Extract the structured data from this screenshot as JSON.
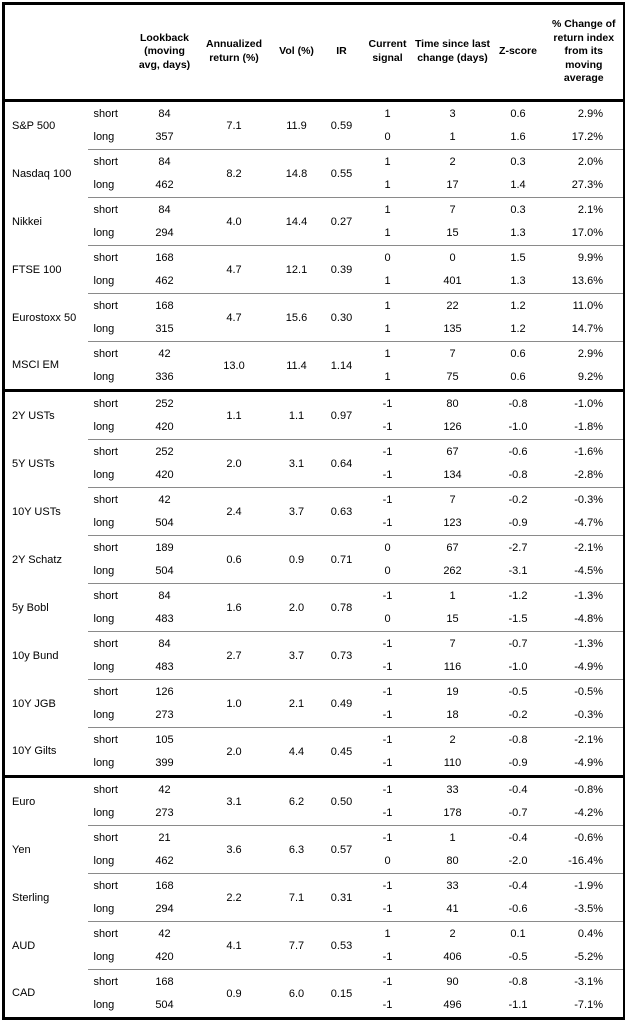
{
  "table": {
    "columns": [
      {
        "key": "asset",
        "label": ""
      },
      {
        "key": "leg",
        "label": ""
      },
      {
        "key": "lookback",
        "label": "Lookback (moving avg, days)"
      },
      {
        "key": "annualized_return",
        "label": "Annualized return (%)"
      },
      {
        "key": "vol",
        "label": "Vol (%)"
      },
      {
        "key": "ir",
        "label": "IR"
      },
      {
        "key": "signal",
        "label": "Current signal"
      },
      {
        "key": "time_since",
        "label": "Time since last change (days)"
      },
      {
        "key": "zscore",
        "label": "Z-score"
      },
      {
        "key": "pct_change",
        "label": "% Change of return index from its moving average"
      }
    ],
    "leg_labels": {
      "short": "short",
      "long": "long"
    },
    "colors": {
      "text": "#000000",
      "group_rule": "#8a8a8a",
      "block_rule": "#000000",
      "background": "#ffffff"
    },
    "groups": [
      {
        "asset": "S&P 500",
        "block": "equities",
        "annualized_return": "7.1",
        "vol": "11.9",
        "ir": "0.59",
        "short": {
          "lookback": "84",
          "signal": "1",
          "time_since": "3",
          "zscore": "0.6",
          "pct_change": "2.9%"
        },
        "long": {
          "lookback": "357",
          "signal": "0",
          "time_since": "1",
          "zscore": "1.6",
          "pct_change": "17.2%"
        }
      },
      {
        "asset": "Nasdaq 100",
        "block": "equities",
        "annualized_return": "8.2",
        "vol": "14.8",
        "ir": "0.55",
        "short": {
          "lookback": "84",
          "signal": "1",
          "time_since": "2",
          "zscore": "0.3",
          "pct_change": "2.0%"
        },
        "long": {
          "lookback": "462",
          "signal": "1",
          "time_since": "17",
          "zscore": "1.4",
          "pct_change": "27.3%"
        }
      },
      {
        "asset": "Nikkei",
        "block": "equities",
        "annualized_return": "4.0",
        "vol": "14.4",
        "ir": "0.27",
        "short": {
          "lookback": "84",
          "signal": "1",
          "time_since": "7",
          "zscore": "0.3",
          "pct_change": "2.1%"
        },
        "long": {
          "lookback": "294",
          "signal": "1",
          "time_since": "15",
          "zscore": "1.3",
          "pct_change": "17.0%"
        }
      },
      {
        "asset": "FTSE 100",
        "block": "equities",
        "annualized_return": "4.7",
        "vol": "12.1",
        "ir": "0.39",
        "short": {
          "lookback": "168",
          "signal": "0",
          "time_since": "0",
          "zscore": "1.5",
          "pct_change": "9.9%"
        },
        "long": {
          "lookback": "462",
          "signal": "1",
          "time_since": "401",
          "zscore": "1.3",
          "pct_change": "13.6%"
        }
      },
      {
        "asset": "Eurostoxx 50",
        "block": "equities",
        "annualized_return": "4.7",
        "vol": "15.6",
        "ir": "0.30",
        "short": {
          "lookback": "168",
          "signal": "1",
          "time_since": "22",
          "zscore": "1.2",
          "pct_change": "11.0%"
        },
        "long": {
          "lookback": "315",
          "signal": "1",
          "time_since": "135",
          "zscore": "1.2",
          "pct_change": "14.7%"
        }
      },
      {
        "asset": "MSCI EM",
        "block": "equities",
        "annualized_return": "13.0",
        "vol": "11.4",
        "ir": "1.14",
        "short": {
          "lookback": "42",
          "signal": "1",
          "time_since": "7",
          "zscore": "0.6",
          "pct_change": "2.9%"
        },
        "long": {
          "lookback": "336",
          "signal": "1",
          "time_since": "75",
          "zscore": "0.6",
          "pct_change": "9.2%"
        }
      },
      {
        "asset": "2Y USTs",
        "block": "rates",
        "annualized_return": "1.1",
        "vol": "1.1",
        "ir": "0.97",
        "short": {
          "lookback": "252",
          "signal": "-1",
          "time_since": "80",
          "zscore": "-0.8",
          "pct_change": "-1.0%"
        },
        "long": {
          "lookback": "420",
          "signal": "-1",
          "time_since": "126",
          "zscore": "-1.0",
          "pct_change": "-1.8%"
        }
      },
      {
        "asset": "5Y USTs",
        "block": "rates",
        "annualized_return": "2.0",
        "vol": "3.1",
        "ir": "0.64",
        "short": {
          "lookback": "252",
          "signal": "-1",
          "time_since": "67",
          "zscore": "-0.6",
          "pct_change": "-1.6%"
        },
        "long": {
          "lookback": "420",
          "signal": "-1",
          "time_since": "134",
          "zscore": "-0.8",
          "pct_change": "-2.8%"
        }
      },
      {
        "asset": "10Y USTs",
        "block": "rates",
        "annualized_return": "2.4",
        "vol": "3.7",
        "ir": "0.63",
        "short": {
          "lookback": "42",
          "signal": "-1",
          "time_since": "7",
          "zscore": "-0.2",
          "pct_change": "-0.3%"
        },
        "long": {
          "lookback": "504",
          "signal": "-1",
          "time_since": "123",
          "zscore": "-0.9",
          "pct_change": "-4.7%"
        }
      },
      {
        "asset": "2Y Schatz",
        "block": "rates",
        "annualized_return": "0.6",
        "vol": "0.9",
        "ir": "0.71",
        "short": {
          "lookback": "189",
          "signal": "0",
          "time_since": "67",
          "zscore": "-2.7",
          "pct_change": "-2.1%"
        },
        "long": {
          "lookback": "504",
          "signal": "0",
          "time_since": "262",
          "zscore": "-3.1",
          "pct_change": "-4.5%"
        }
      },
      {
        "asset": "5y Bobl",
        "block": "rates",
        "annualized_return": "1.6",
        "vol": "2.0",
        "ir": "0.78",
        "short": {
          "lookback": "84",
          "signal": "-1",
          "time_since": "1",
          "zscore": "-1.2",
          "pct_change": "-1.3%"
        },
        "long": {
          "lookback": "483",
          "signal": "0",
          "time_since": "15",
          "zscore": "-1.5",
          "pct_change": "-4.8%"
        }
      },
      {
        "asset": "10y Bund",
        "block": "rates",
        "annualized_return": "2.7",
        "vol": "3.7",
        "ir": "0.73",
        "short": {
          "lookback": "84",
          "signal": "-1",
          "time_since": "7",
          "zscore": "-0.7",
          "pct_change": "-1.3%"
        },
        "long": {
          "lookback": "483",
          "signal": "-1",
          "time_since": "116",
          "zscore": "-1.0",
          "pct_change": "-4.9%"
        }
      },
      {
        "asset": "10Y JGB",
        "block": "rates",
        "annualized_return": "1.0",
        "vol": "2.1",
        "ir": "0.49",
        "short": {
          "lookback": "126",
          "signal": "-1",
          "time_since": "19",
          "zscore": "-0.5",
          "pct_change": "-0.5%"
        },
        "long": {
          "lookback": "273",
          "signal": "-1",
          "time_since": "18",
          "zscore": "-0.2",
          "pct_change": "-0.3%"
        }
      },
      {
        "asset": "10Y Gilts",
        "block": "rates",
        "annualized_return": "2.0",
        "vol": "4.4",
        "ir": "0.45",
        "short": {
          "lookback": "105",
          "signal": "-1",
          "time_since": "2",
          "zscore": "-0.8",
          "pct_change": "-2.1%"
        },
        "long": {
          "lookback": "399",
          "signal": "-1",
          "time_since": "110",
          "zscore": "-0.9",
          "pct_change": "-4.9%"
        }
      },
      {
        "asset": "Euro",
        "block": "fx",
        "annualized_return": "3.1",
        "vol": "6.2",
        "ir": "0.50",
        "short": {
          "lookback": "42",
          "signal": "-1",
          "time_since": "33",
          "zscore": "-0.4",
          "pct_change": "-0.8%"
        },
        "long": {
          "lookback": "273",
          "signal": "-1",
          "time_since": "178",
          "zscore": "-0.7",
          "pct_change": "-4.2%"
        }
      },
      {
        "asset": "Yen",
        "block": "fx",
        "annualized_return": "3.6",
        "vol": "6.3",
        "ir": "0.57",
        "short": {
          "lookback": "21",
          "signal": "-1",
          "time_since": "1",
          "zscore": "-0.4",
          "pct_change": "-0.6%"
        },
        "long": {
          "lookback": "462",
          "signal": "0",
          "time_since": "80",
          "zscore": "-2.0",
          "pct_change": "-16.4%"
        }
      },
      {
        "asset": "Sterling",
        "block": "fx",
        "annualized_return": "2.2",
        "vol": "7.1",
        "ir": "0.31",
        "short": {
          "lookback": "168",
          "signal": "-1",
          "time_since": "33",
          "zscore": "-0.4",
          "pct_change": "-1.9%"
        },
        "long": {
          "lookback": "294",
          "signal": "-1",
          "time_since": "41",
          "zscore": "-0.6",
          "pct_change": "-3.5%"
        }
      },
      {
        "asset": "AUD",
        "block": "fx",
        "annualized_return": "4.1",
        "vol": "7.7",
        "ir": "0.53",
        "short": {
          "lookback": "42",
          "signal": "1",
          "time_since": "2",
          "zscore": "0.1",
          "pct_change": "0.4%"
        },
        "long": {
          "lookback": "420",
          "signal": "-1",
          "time_since": "406",
          "zscore": "-0.5",
          "pct_change": "-5.2%"
        }
      },
      {
        "asset": "CAD",
        "block": "fx",
        "annualized_return": "0.9",
        "vol": "6.0",
        "ir": "0.15",
        "short": {
          "lookback": "168",
          "signal": "-1",
          "time_since": "90",
          "zscore": "-0.8",
          "pct_change": "-3.1%"
        },
        "long": {
          "lookback": "504",
          "signal": "-1",
          "time_since": "496",
          "zscore": "-1.1",
          "pct_change": "-7.1%"
        }
      }
    ]
  }
}
